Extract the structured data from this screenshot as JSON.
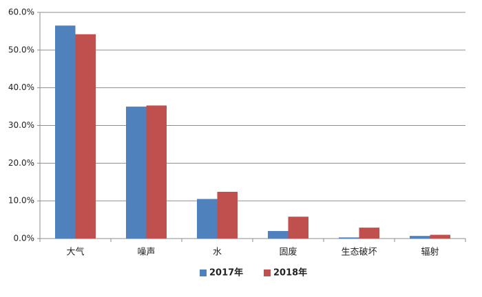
{
  "chart_data": {
    "type": "bar",
    "categories": [
      "大气",
      "噪声",
      "水",
      "固废",
      "生态破坏",
      "辐射"
    ],
    "series": [
      {
        "name": "2017年",
        "color": "#4f81bd",
        "values": [
          56.5,
          35.0,
          10.5,
          2.0,
          0.3,
          0.7
        ]
      },
      {
        "name": "2018年",
        "color": "#c0504d",
        "values": [
          54.2,
          35.3,
          12.4,
          5.8,
          2.9,
          1.0
        ]
      }
    ],
    "ylim": [
      0,
      60
    ],
    "yticks": [
      {
        "value": 0,
        "label": "0.0%"
      },
      {
        "value": 10,
        "label": "10.0%"
      },
      {
        "value": 20,
        "label": "20.0%"
      },
      {
        "value": 30,
        "label": "30.0%"
      },
      {
        "value": 40,
        "label": "40.0%"
      },
      {
        "value": 50,
        "label": "50.0%"
      },
      {
        "value": 60,
        "label": "60.0%"
      }
    ],
    "grid": true,
    "legend": "bottom"
  }
}
